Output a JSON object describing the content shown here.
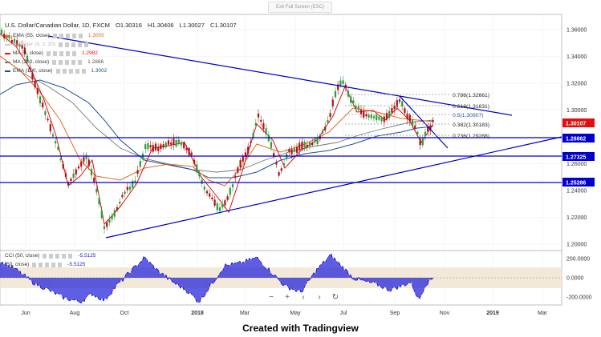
{
  "window": {
    "exit_fullscreen_label": "Exit Full Screen (ESC)"
  },
  "symbol": {
    "name": "U.S. Dollar/Canadian Dollar, 1D, FXCM",
    "open": "O1.30316",
    "high": "H1.30406",
    "low": "L1.30027",
    "close": "C1.30107"
  },
  "indicators": [
    {
      "label": "EMA (55, close)",
      "value": "1.3005",
      "color": "#e8691c"
    },
    {
      "label": "Bollinger (9, 2, 20)",
      "value": "",
      "color": "#cccccc"
    },
    {
      "label": "MA (9, close)",
      "value": "1.2982",
      "color": "#e01010"
    },
    {
      "label": "MA (200, close)",
      "value": "1.2886",
      "color": "#777777"
    },
    {
      "label": "EMA (100, close)",
      "value": "1.3002",
      "color": "#1d4f9c"
    }
  ],
  "oscillator_legend": [
    {
      "label": "CCI (50, close)",
      "value": "-5.5125"
    },
    {
      "label": "(50, close)",
      "value": "-5.5125"
    }
  ],
  "price_axis": {
    "ticks": [
      "1.36000",
      "1.34000",
      "1.32000",
      "1.30000",
      "1.28000",
      "1.26000",
      "1.24000",
      "1.22000",
      "1.20000"
    ],
    "levels": [
      {
        "label": "1.30107",
        "color": "#e01010"
      },
      {
        "label": "1.28862",
        "color": "#0000cc"
      },
      {
        "label": "1.27325",
        "color": "#0000cc"
      },
      {
        "label": "1.25286",
        "color": "#0000cc"
      }
    ]
  },
  "oscillator_axis": {
    "ticks": [
      "200.0000",
      "0.0000",
      "-200.0000"
    ]
  },
  "time_axis": {
    "labels": [
      "Jun",
      "Aug",
      "Oct",
      "2018",
      "Mar",
      "May",
      "Jul",
      "Sep",
      "Nov",
      "2019",
      "Mar"
    ]
  },
  "fibonacci": [
    {
      "label": "0.786(1.32661)"
    },
    {
      "label": "0.618(1.31631)"
    },
    {
      "label": "0.5(1.30907)"
    },
    {
      "label": "0.382(1.30183)"
    },
    {
      "label": "0.236(1.29288)"
    }
  ],
  "footer": {
    "text": "Created with Tradingview"
  },
  "zoom_controls": {
    "minus": "−",
    "plus": "+",
    "left": "‹",
    "right": "›",
    "reset": "↻"
  },
  "theme": {
    "accent": "#0000cc",
    "last_price_bg": "#e01010",
    "cci_fill": "#1a1ad9",
    "cci_band": "#efe3cf"
  }
}
